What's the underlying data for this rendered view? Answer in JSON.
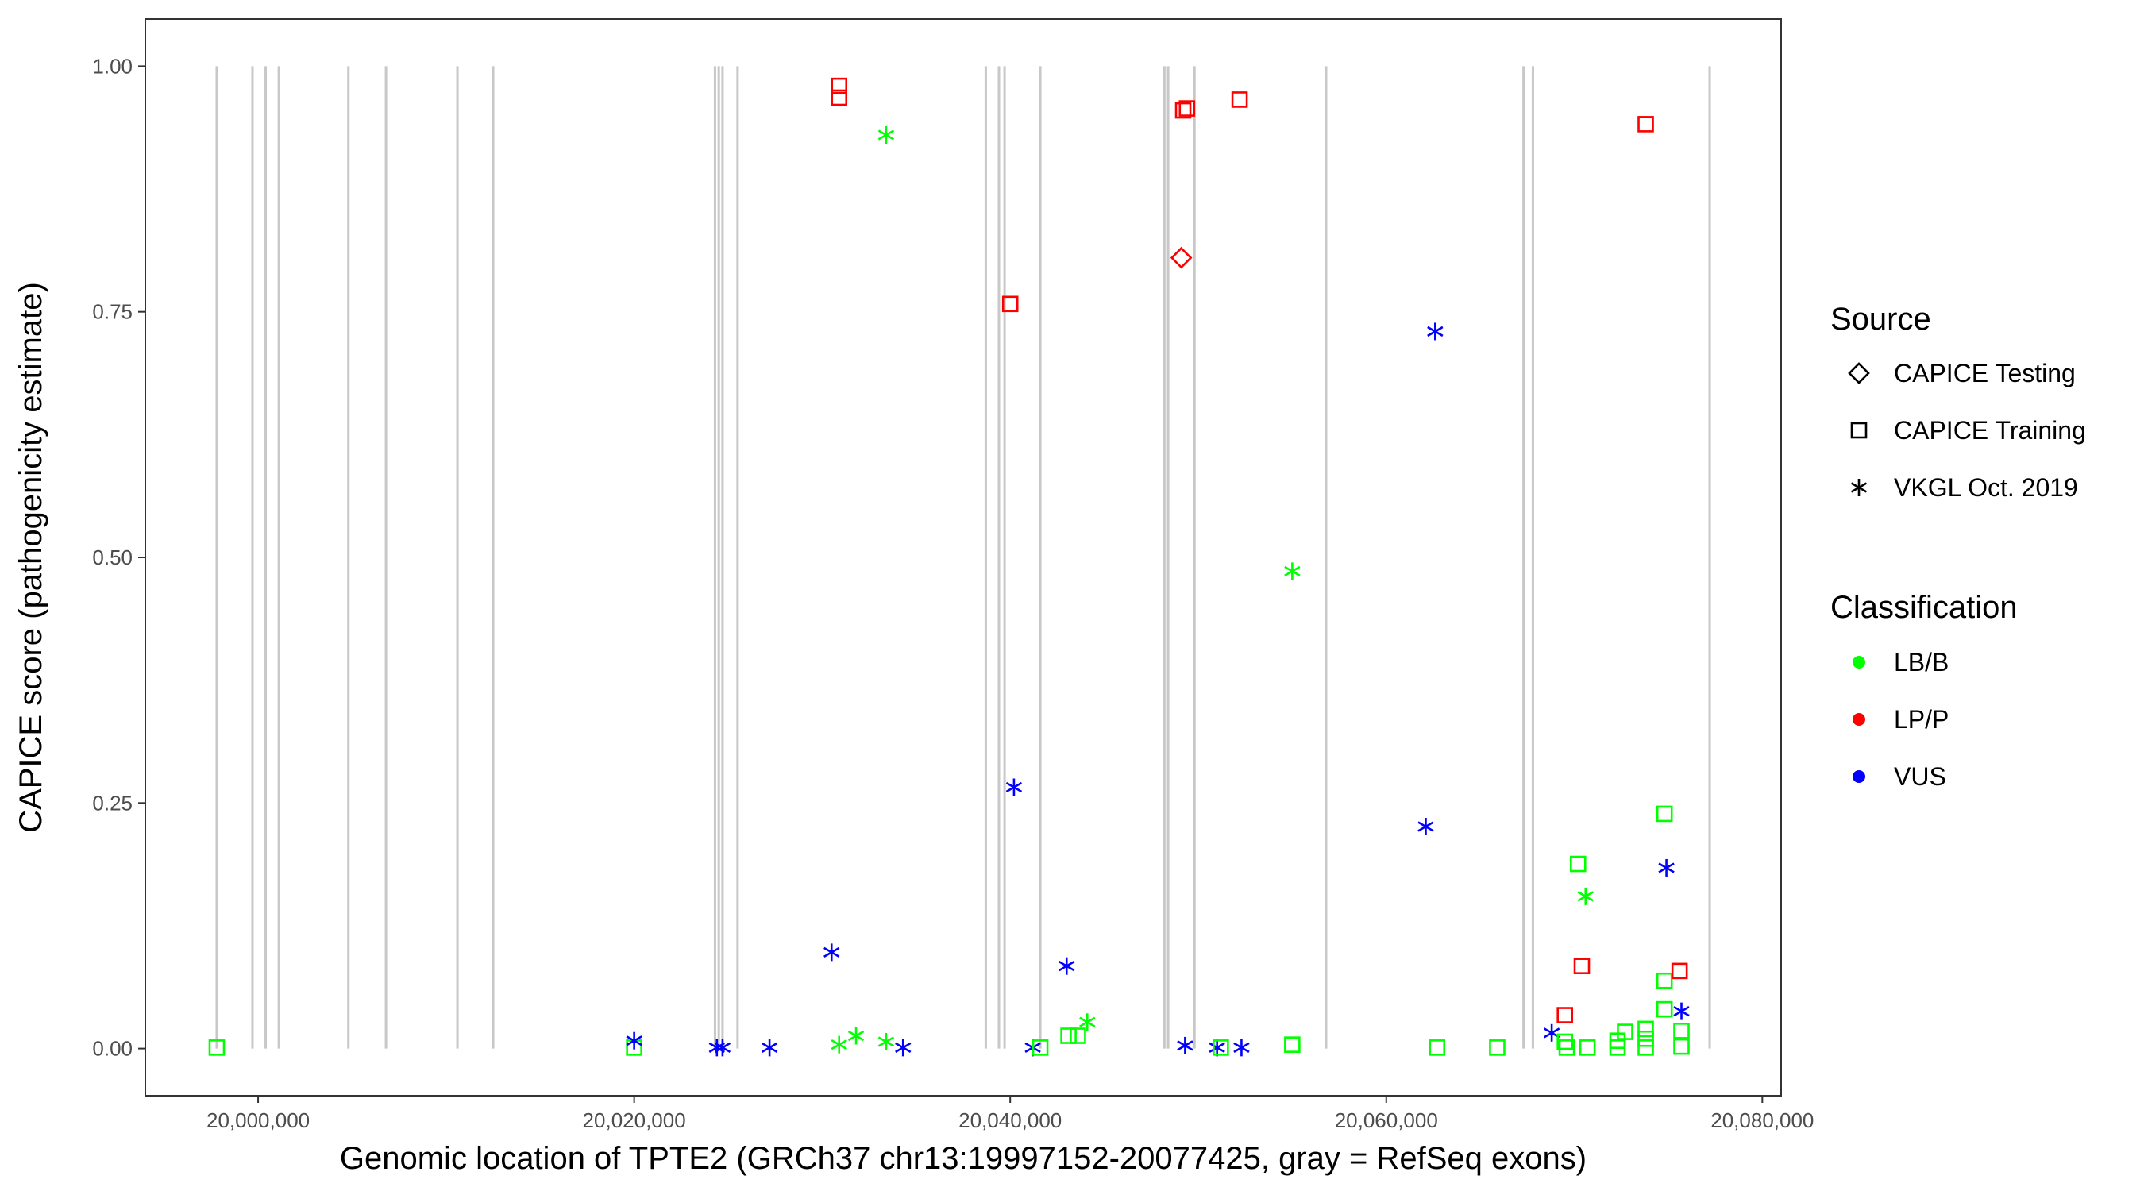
{
  "chart_data": {
    "type": "scatter",
    "xlabel": "Genomic location of TPTE2 (GRCh37 chr13:19997152-20077425, gray = RefSeq exons)",
    "ylabel": "CAPICE score (pathogenicity estimate)",
    "xlim": [
      19994000,
      20081000
    ],
    "ylim": [
      -0.048,
      1.048
    ],
    "x_ticks": [
      20000000,
      20020000,
      20040000,
      20060000,
      20080000
    ],
    "x_tick_labels": [
      "20,000,000",
      "20,020,000",
      "20,040,000",
      "20,060,000",
      "20,080,000"
    ],
    "y_ticks": [
      0,
      0.25,
      0.5,
      0.75,
      1.0
    ],
    "y_tick_labels": [
      "0.00",
      "0.25",
      "0.50",
      "0.75",
      "1.00"
    ],
    "grid": false,
    "exon_lines_color": "#c8c8c8",
    "exon_positions": [
      19997800,
      19999700,
      20000400,
      20001100,
      20004800,
      20006800,
      20010600,
      20012500,
      20024300,
      20024500,
      20024700,
      20025500,
      20038700,
      20039400,
      20039700,
      20041600,
      20048200,
      20048400,
      20049800,
      20056800,
      20067300,
      20067800,
      20077200
    ],
    "legend": {
      "source_title": "Source",
      "source_items": [
        {
          "label": "CAPICE Testing",
          "shape": "diamond"
        },
        {
          "label": "CAPICE Training",
          "shape": "square"
        },
        {
          "label": "VKGL Oct. 2019",
          "shape": "asterisk"
        }
      ],
      "class_title": "Classification",
      "class_items": [
        {
          "label": "LB/B",
          "color": "#00ff00"
        },
        {
          "label": "LP/P",
          "color": "#ff0000"
        },
        {
          "label": "VUS",
          "color": "#0000ff"
        }
      ],
      "placement": "right"
    },
    "colors": {
      "LB/B": "#00ff00",
      "LP/P": "#ff0000",
      "VUS": "#0000ff"
    },
    "points": [
      {
        "x": 19997800,
        "y": 0.001,
        "shape": "square",
        "class": "LB/B"
      },
      {
        "x": 20020000,
        "y": 0.001,
        "shape": "square",
        "class": "LB/B"
      },
      {
        "x": 20020000,
        "y": 0.008,
        "shape": "asterisk",
        "class": "VUS"
      },
      {
        "x": 20024400,
        "y": 0.001,
        "shape": "asterisk",
        "class": "VUS"
      },
      {
        "x": 20024700,
        "y": 0.001,
        "shape": "asterisk",
        "class": "VUS"
      },
      {
        "x": 20027200,
        "y": 0.001,
        "shape": "asterisk",
        "class": "VUS"
      },
      {
        "x": 20030500,
        "y": 0.098,
        "shape": "asterisk",
        "class": "VUS"
      },
      {
        "x": 20030900,
        "y": 0.98,
        "shape": "square",
        "class": "LP/P"
      },
      {
        "x": 20030900,
        "y": 0.968,
        "shape": "square",
        "class": "LP/P"
      },
      {
        "x": 20030900,
        "y": 0.004,
        "shape": "asterisk",
        "class": "LB/B"
      },
      {
        "x": 20031800,
        "y": 0.013,
        "shape": "asterisk",
        "class": "LB/B"
      },
      {
        "x": 20033400,
        "y": 0.93,
        "shape": "asterisk",
        "class": "LB/B"
      },
      {
        "x": 20033400,
        "y": 0.007,
        "shape": "asterisk",
        "class": "LB/B"
      },
      {
        "x": 20034300,
        "y": 0.001,
        "shape": "asterisk",
        "class": "VUS"
      },
      {
        "x": 20040000,
        "y": 0.758,
        "shape": "square",
        "class": "LP/P"
      },
      {
        "x": 20040200,
        "y": 0.266,
        "shape": "asterisk",
        "class": "VUS"
      },
      {
        "x": 20041200,
        "y": 0.001,
        "shape": "asterisk",
        "class": "VUS"
      },
      {
        "x": 20041600,
        "y": 0.001,
        "shape": "square",
        "class": "LB/B"
      },
      {
        "x": 20043000,
        "y": 0.084,
        "shape": "asterisk",
        "class": "VUS"
      },
      {
        "x": 20043100,
        "y": 0.013,
        "shape": "square",
        "class": "LB/B"
      },
      {
        "x": 20043600,
        "y": 0.013,
        "shape": "square",
        "class": "LB/B"
      },
      {
        "x": 20044100,
        "y": 0.027,
        "shape": "asterisk",
        "class": "LB/B"
      },
      {
        "x": 20049100,
        "y": 0.805,
        "shape": "diamond",
        "class": "LP/P"
      },
      {
        "x": 20049200,
        "y": 0.955,
        "shape": "square",
        "class": "LP/P"
      },
      {
        "x": 20049400,
        "y": 0.957,
        "shape": "square",
        "class": "LP/P"
      },
      {
        "x": 20049300,
        "y": 0.003,
        "shape": "asterisk",
        "class": "VUS"
      },
      {
        "x": 20051000,
        "y": 0.001,
        "shape": "asterisk",
        "class": "VUS"
      },
      {
        "x": 20051200,
        "y": 0.001,
        "shape": "square",
        "class": "LB/B"
      },
      {
        "x": 20052200,
        "y": 0.966,
        "shape": "square",
        "class": "LP/P"
      },
      {
        "x": 20052300,
        "y": 0.001,
        "shape": "asterisk",
        "class": "VUS"
      },
      {
        "x": 20055000,
        "y": 0.486,
        "shape": "asterisk",
        "class": "LB/B"
      },
      {
        "x": 20055000,
        "y": 0.004,
        "shape": "square",
        "class": "LB/B"
      },
      {
        "x": 20062100,
        "y": 0.226,
        "shape": "asterisk",
        "class": "VUS"
      },
      {
        "x": 20062600,
        "y": 0.73,
        "shape": "asterisk",
        "class": "VUS"
      },
      {
        "x": 20062700,
        "y": 0.001,
        "shape": "square",
        "class": "LB/B"
      },
      {
        "x": 20065900,
        "y": 0.001,
        "shape": "square",
        "class": "LB/B"
      },
      {
        "x": 20068800,
        "y": 0.016,
        "shape": "asterisk",
        "class": "VUS"
      },
      {
        "x": 20069500,
        "y": 0.034,
        "shape": "square",
        "class": "LP/P"
      },
      {
        "x": 20069500,
        "y": 0.007,
        "shape": "square",
        "class": "LB/B"
      },
      {
        "x": 20069600,
        "y": 0.001,
        "shape": "square",
        "class": "LB/B"
      },
      {
        "x": 20070200,
        "y": 0.188,
        "shape": "square",
        "class": "LB/B"
      },
      {
        "x": 20070400,
        "y": 0.084,
        "shape": "square",
        "class": "LP/P"
      },
      {
        "x": 20070600,
        "y": 0.155,
        "shape": "asterisk",
        "class": "LB/B"
      },
      {
        "x": 20070700,
        "y": 0.001,
        "shape": "square",
        "class": "LB/B"
      },
      {
        "x": 20072300,
        "y": 0.008,
        "shape": "square",
        "class": "LB/B"
      },
      {
        "x": 20072300,
        "y": 0.001,
        "shape": "square",
        "class": "LB/B"
      },
      {
        "x": 20072700,
        "y": 0.017,
        "shape": "square",
        "class": "LB/B"
      },
      {
        "x": 20073800,
        "y": 0.941,
        "shape": "square",
        "class": "LP/P"
      },
      {
        "x": 20073800,
        "y": 0.02,
        "shape": "square",
        "class": "LB/B"
      },
      {
        "x": 20073800,
        "y": 0.01,
        "shape": "square",
        "class": "LB/B"
      },
      {
        "x": 20073800,
        "y": 0.001,
        "shape": "square",
        "class": "LB/B"
      },
      {
        "x": 20074800,
        "y": 0.239,
        "shape": "square",
        "class": "LB/B"
      },
      {
        "x": 20074800,
        "y": 0.069,
        "shape": "square",
        "class": "LB/B"
      },
      {
        "x": 20074800,
        "y": 0.04,
        "shape": "square",
        "class": "LB/B"
      },
      {
        "x": 20074900,
        "y": 0.184,
        "shape": "asterisk",
        "class": "VUS"
      },
      {
        "x": 20075600,
        "y": 0.079,
        "shape": "square",
        "class": "LP/P"
      },
      {
        "x": 20075700,
        "y": 0.038,
        "shape": "asterisk",
        "class": "VUS"
      },
      {
        "x": 20075700,
        "y": 0.018,
        "shape": "square",
        "class": "LB/B"
      },
      {
        "x": 20075700,
        "y": 0.002,
        "shape": "square",
        "class": "LB/B"
      }
    ]
  }
}
